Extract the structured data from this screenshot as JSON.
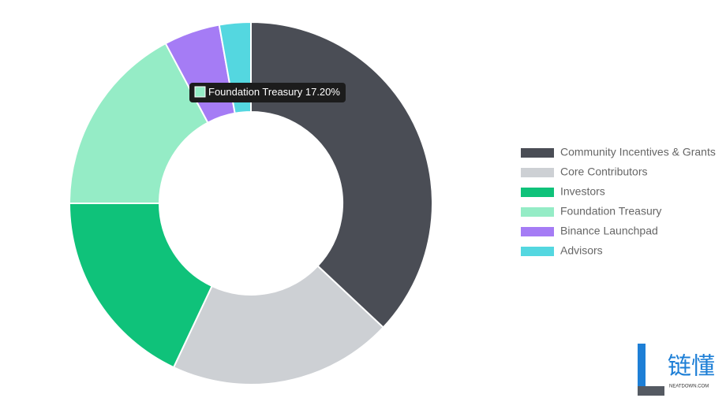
{
  "chart_data": {
    "type": "doughnut",
    "categories": [
      "Community Incentives & Grants",
      "Core Contributors",
      "Investors",
      "Foundation Treasury",
      "Binance Launchpad",
      "Advisors"
    ],
    "values": [
      37,
      20,
      18,
      17.2,
      5,
      2.8
    ],
    "value_labels": [
      null,
      null,
      null,
      "17.20%",
      null,
      null
    ],
    "colors": [
      "#4a4d55",
      "#cdd0d4",
      "#0fc27a",
      "#95ecc6",
      "#a57cf5",
      "#54d7e0"
    ],
    "legend": "right",
    "tooltip_index": 3
  },
  "watermark": {
    "text": "链懂",
    "subtext": "NEATDOWN.COM"
  }
}
